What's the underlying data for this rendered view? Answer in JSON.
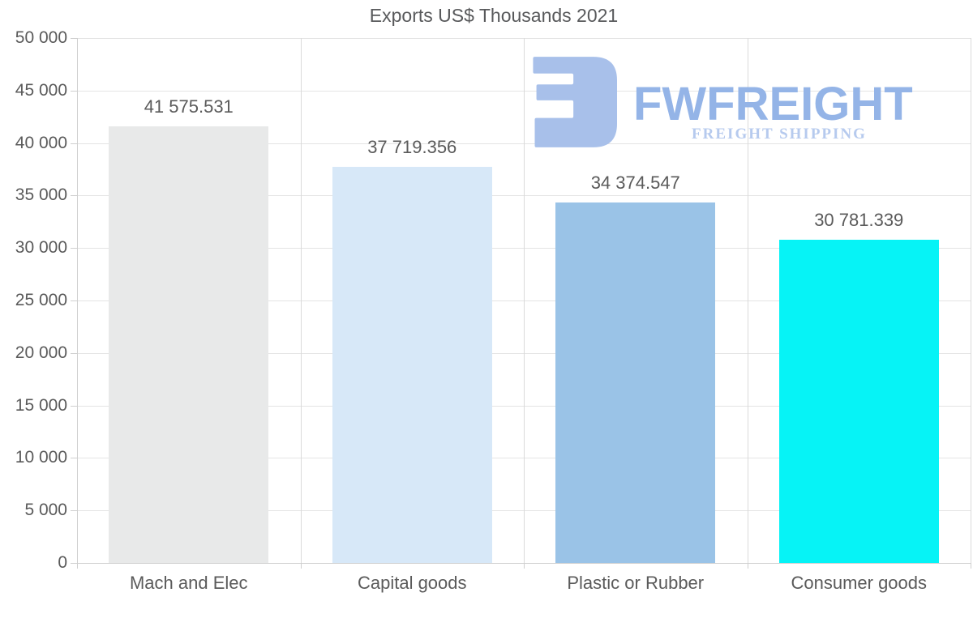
{
  "title": "Exports US$ Thousands 2021",
  "logo": {
    "brand": "FWFREIGHT",
    "tagline": "FREIGHT SHIPPING",
    "icon": "fwfreight-logo-icon",
    "colors": {
      "icon": "#a8c0ea",
      "brand": "#94b4e7",
      "tagline": "#b6caee"
    }
  },
  "chart_data": {
    "type": "bar",
    "title": "Exports US$ Thousands 2021",
    "categories": [
      "Mach and Elec",
      "Capital goods",
      "Plastic or Rubber",
      "Consumer goods"
    ],
    "values": [
      41575.531,
      37719.356,
      34374.547,
      30781.339
    ],
    "value_labels": [
      "41 575.531",
      "37 719.356",
      "34 374.547",
      "30 781.339"
    ],
    "bar_colors": [
      "#e8e9e9",
      "#d7e8f8",
      "#9ac3e7",
      "#06f3f6"
    ],
    "xlabel": "",
    "ylabel": "",
    "ylim": [
      0,
      50000
    ],
    "ytick_step": 5000,
    "ytick_labels": [
      "0",
      "5 000",
      "10 000",
      "15 000",
      "20 000",
      "25 000",
      "30 000",
      "35 000",
      "40 000",
      "45 000",
      "50 000"
    ],
    "grid": true,
    "legend": false
  }
}
